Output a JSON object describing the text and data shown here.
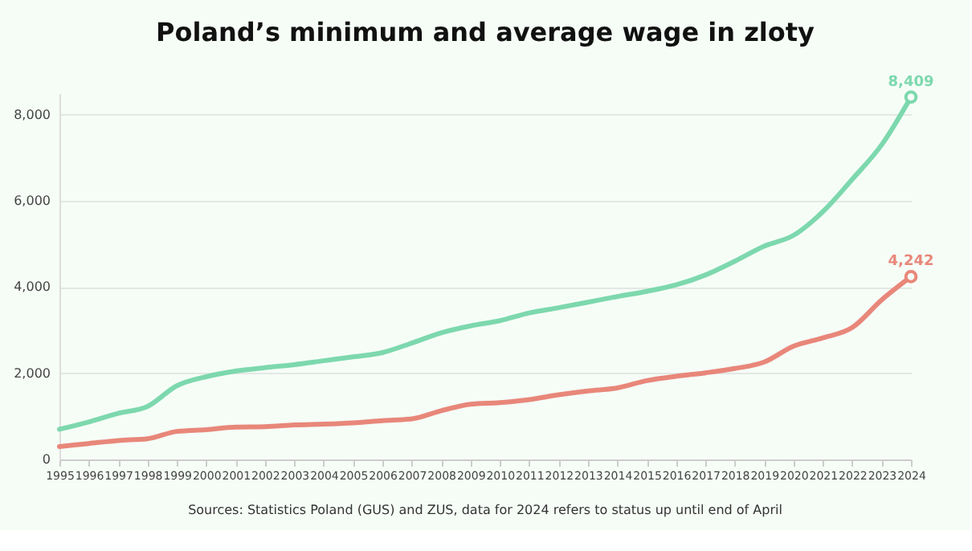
{
  "chart_data": {
    "type": "line",
    "title": "Poland’s minimum and average wage in zloty",
    "x": [
      1995,
      1996,
      1997,
      1998,
      1999,
      2000,
      2001,
      2002,
      2003,
      2004,
      2005,
      2006,
      2007,
      2008,
      2009,
      2010,
      2011,
      2012,
      2013,
      2014,
      2015,
      2016,
      2017,
      2018,
      2019,
      2020,
      2021,
      2022,
      2023,
      2024
    ],
    "series": [
      {
        "color": "#7dd8ae",
        "values": [
          700,
          870,
          1070,
          1230,
          1710,
          1920,
          2050,
          2130,
          2200,
          2290,
          2380,
          2480,
          2700,
          2940,
          3100,
          3220,
          3400,
          3520,
          3650,
          3780,
          3900,
          4050,
          4280,
          4600,
          4950,
          5200,
          5750,
          6500,
          7300,
          8409
        ],
        "value_labels": [
          null,
          null,
          null,
          null,
          null,
          null,
          null,
          null,
          null,
          null,
          null,
          null,
          null,
          null,
          null,
          null,
          null,
          null,
          null,
          null,
          null,
          null,
          null,
          null,
          null,
          null,
          null,
          null,
          null,
          "8,409"
        ]
      },
      {
        "color": "#e8877a",
        "values": [
          300,
          370,
          440,
          480,
          650,
          690,
          750,
          760,
          800,
          820,
          850,
          900,
          940,
          1130,
          1280,
          1320,
          1390,
          1500,
          1590,
          1660,
          1830,
          1930,
          2010,
          2110,
          2260,
          2630,
          2820,
          3060,
          3700,
          4242
        ],
        "value_labels": [
          null,
          null,
          null,
          null,
          null,
          null,
          null,
          null,
          null,
          null,
          null,
          null,
          null,
          null,
          null,
          null,
          null,
          null,
          null,
          null,
          null,
          null,
          null,
          null,
          null,
          null,
          null,
          null,
          null,
          "4,242"
        ]
      }
    ],
    "xlim": [
      1995,
      2024
    ],
    "xticks": [
      1995,
      1996,
      1997,
      1998,
      1999,
      2000,
      2001,
      2002,
      2003,
      2004,
      2005,
      2006,
      2007,
      2008,
      2009,
      2010,
      2011,
      2012,
      2013,
      2014,
      2015,
      2016,
      2017,
      2018,
      2019,
      2020,
      2021,
      2022,
      2023,
      2024
    ],
    "ylim": [
      0,
      8500
    ],
    "yticks": [
      {
        "value": 0,
        "label": "0"
      },
      {
        "value": 2000,
        "label": "2,000"
      },
      {
        "value": 4000,
        "label": "4,000"
      },
      {
        "value": 6000,
        "label": "6,000"
      },
      {
        "value": 8000,
        "label": "8,000"
      }
    ],
    "grid": "y",
    "legend": false,
    "line_style": "solid",
    "annotations": [
      "Sources: Statistics Poland (GUS) and ZUS, data for 2024 refers to status up until end of April"
    ]
  }
}
